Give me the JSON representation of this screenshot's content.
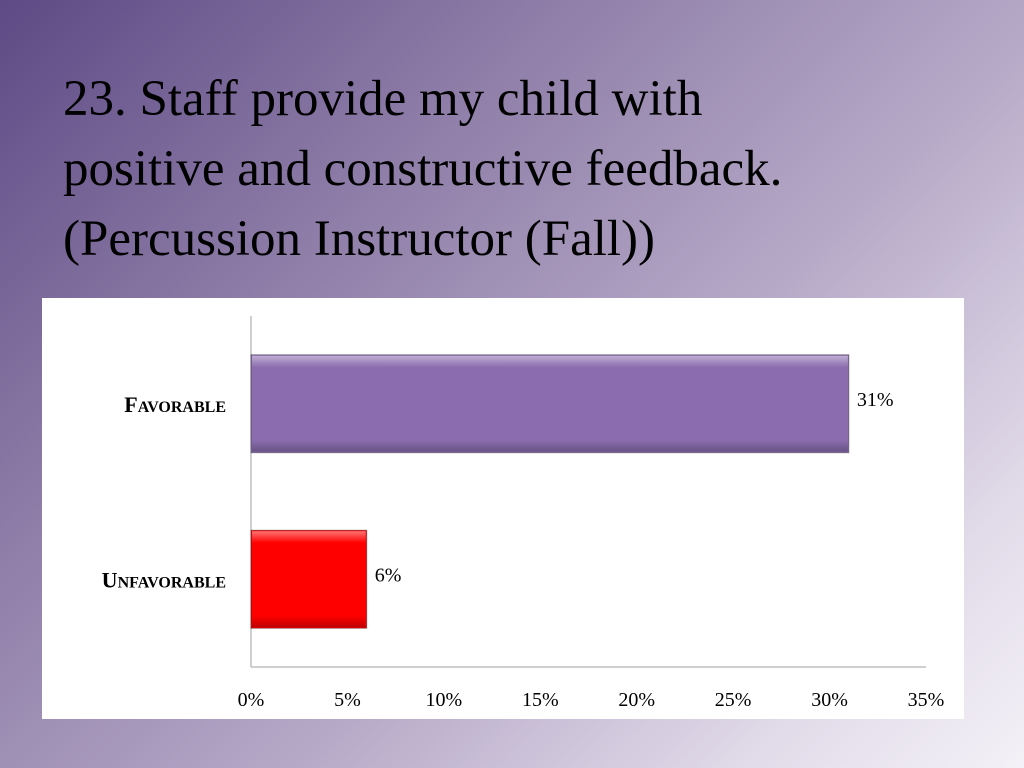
{
  "title": {
    "lines": [
      "23. Staff provide my child with",
      "positive and constructive feedback.",
      "(Percussion Instructor (Fall))"
    ]
  },
  "chart_data": {
    "type": "bar",
    "orientation": "horizontal",
    "categories": [
      "Favorable",
      "Unfavorable"
    ],
    "values": [
      31,
      6
    ],
    "data_labels": [
      "31%",
      "6%"
    ],
    "colors": [
      "#8b6daf",
      "#ff0000"
    ],
    "xlim": [
      0,
      35
    ],
    "x_ticks": [
      0,
      5,
      10,
      15,
      20,
      25,
      30,
      35
    ],
    "x_tick_labels": [
      "0%",
      "5%",
      "10%",
      "15%",
      "20%",
      "25%",
      "30%",
      "35%"
    ],
    "grid": false,
    "legend": "none"
  }
}
